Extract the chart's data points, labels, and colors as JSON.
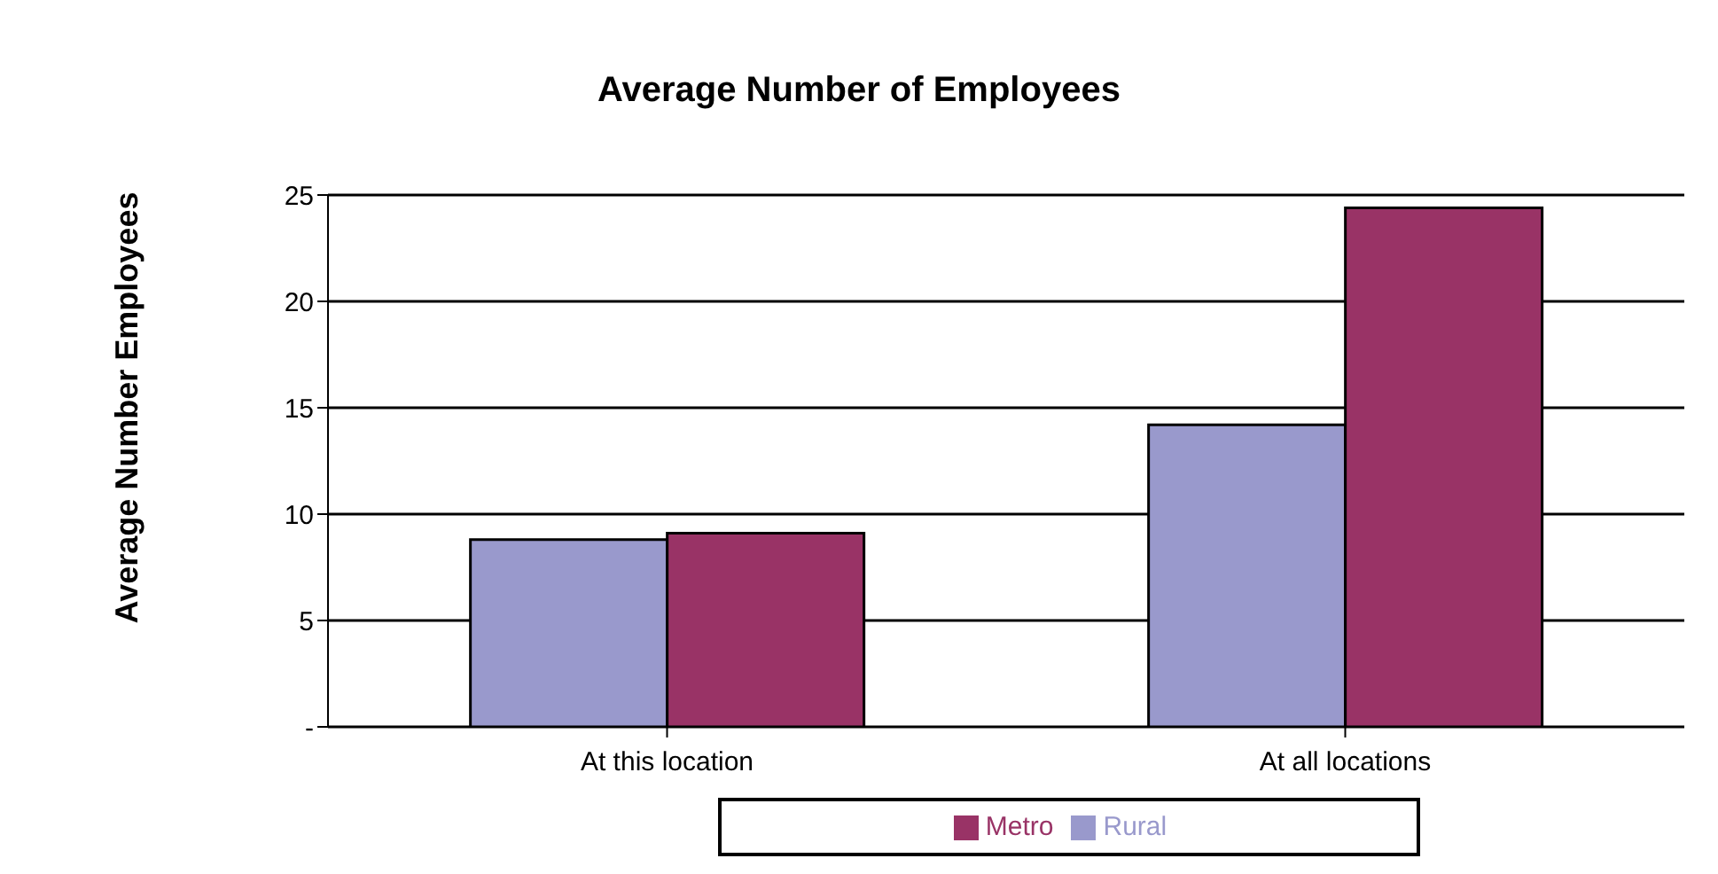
{
  "chart_data": {
    "type": "bar",
    "title": "Average Number of Employees",
    "ylabel": "Average Number  Employees",
    "categories": [
      "At this location",
      "At all locations"
    ],
    "series": [
      {
        "name": "Rural",
        "color": "#9999cc",
        "values": [
          8.8,
          14.2
        ]
      },
      {
        "name": "Metro",
        "color": "#993366",
        "values": [
          9.1,
          24.4
        ]
      }
    ],
    "ylim": [
      0,
      25
    ],
    "yticks": [
      {
        "value": 0,
        "label": "-"
      },
      5,
      10,
      15,
      20,
      25
    ],
    "grid": "y",
    "legend": "bottom"
  }
}
